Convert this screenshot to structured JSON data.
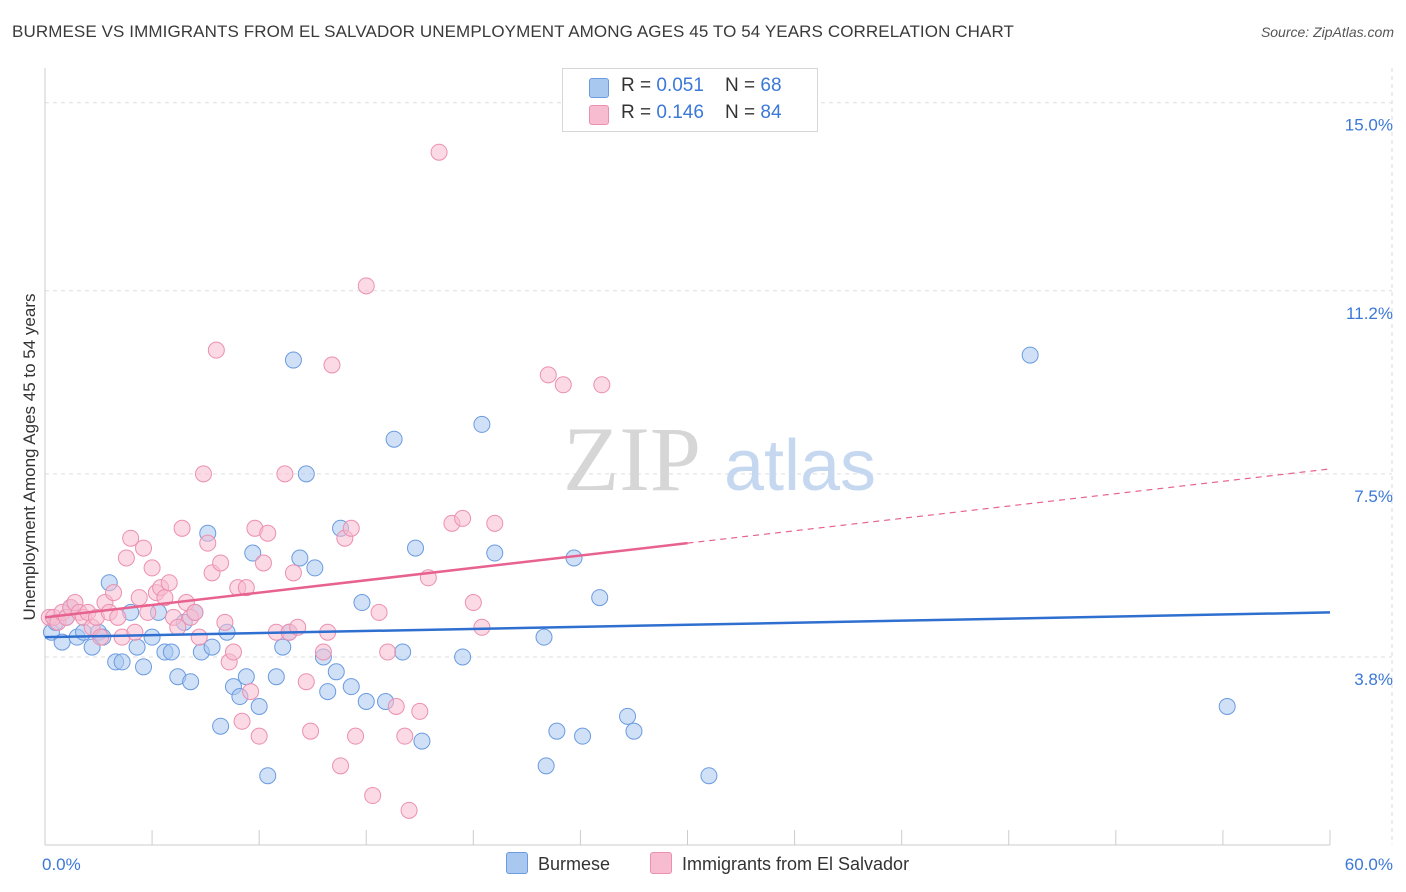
{
  "title": "BURMESE VS IMMIGRANTS FROM EL SALVADOR UNEMPLOYMENT AMONG AGES 45 TO 54 YEARS CORRELATION CHART",
  "source": "Source: ZipAtlas.com",
  "watermark": {
    "zip": "ZIP",
    "atlas": "atlas"
  },
  "legend": {
    "rows": [
      {
        "r_label": "R = ",
        "r_value": "0.051",
        "n_label": "N = ",
        "n_value": "68"
      },
      {
        "r_label": "R = ",
        "r_value": "0.146",
        "n_label": "N = ",
        "n_value": "84"
      }
    ]
  },
  "colors": {
    "burmese_fill": "#a9c8f0",
    "burmese_stroke": "#6a9be0",
    "burmese_line": "#2f6fcf",
    "salvador_fill": "#f7bcd0",
    "salvador_stroke": "#ec8fb0",
    "salvador_line": "#e8628f",
    "grid": "#dddddd",
    "axis_text": "#3b78d8"
  },
  "chart_data": {
    "type": "scatter",
    "title": "BURMESE VS IMMIGRANTS FROM EL SALVADOR UNEMPLOYMENT AMONG AGES 45 TO 54 YEARS CORRELATION CHART",
    "xlabel": "",
    "ylabel": "Unemployment Among Ages 45 to 54 years",
    "xlim": [
      0,
      60
    ],
    "ylim": [
      0,
      15.5
    ],
    "x_tick_labels": [
      "0.0%",
      "60.0%"
    ],
    "y_ticks": [
      3.8,
      7.5,
      11.2,
      15.0
    ],
    "y_tick_labels": [
      "3.8%",
      "7.5%",
      "11.2%",
      "15.0%"
    ],
    "legend_position": "top-center",
    "series": [
      {
        "name": "Burmese",
        "r": 0.051,
        "n": 68,
        "trend": {
          "x0": 0,
          "y0": 4.2,
          "x1": 60,
          "y1": 4.7
        },
        "points": [
          [
            0.3,
            4.3
          ],
          [
            0.5,
            4.5
          ],
          [
            0.8,
            4.1
          ],
          [
            1.0,
            4.6
          ],
          [
            1.2,
            4.8
          ],
          [
            1.5,
            4.2
          ],
          [
            1.8,
            4.3
          ],
          [
            2.2,
            4.0
          ],
          [
            2.5,
            4.3
          ],
          [
            2.7,
            4.2
          ],
          [
            3.0,
            5.3
          ],
          [
            3.3,
            3.7
          ],
          [
            3.6,
            3.7
          ],
          [
            4.0,
            4.7
          ],
          [
            4.3,
            4.0
          ],
          [
            4.6,
            3.6
          ],
          [
            5.0,
            4.2
          ],
          [
            5.3,
            4.7
          ],
          [
            5.6,
            3.9
          ],
          [
            5.9,
            3.9
          ],
          [
            6.2,
            3.4
          ],
          [
            6.5,
            4.5
          ],
          [
            6.8,
            3.3
          ],
          [
            7.0,
            4.7
          ],
          [
            7.3,
            3.9
          ],
          [
            7.6,
            6.3
          ],
          [
            7.8,
            4.0
          ],
          [
            8.2,
            2.4
          ],
          [
            8.5,
            4.3
          ],
          [
            8.8,
            3.2
          ],
          [
            9.1,
            3.0
          ],
          [
            9.4,
            3.4
          ],
          [
            9.7,
            5.9
          ],
          [
            10.0,
            2.8
          ],
          [
            10.4,
            1.4
          ],
          [
            10.8,
            3.4
          ],
          [
            11.1,
            4.0
          ],
          [
            11.4,
            4.3
          ],
          [
            11.6,
            9.8
          ],
          [
            11.9,
            5.8
          ],
          [
            12.2,
            7.5
          ],
          [
            12.6,
            5.6
          ],
          [
            13.0,
            3.8
          ],
          [
            13.2,
            3.1
          ],
          [
            13.6,
            3.5
          ],
          [
            13.8,
            6.4
          ],
          [
            14.3,
            3.2
          ],
          [
            14.8,
            4.9
          ],
          [
            15.0,
            2.9
          ],
          [
            15.9,
            2.9
          ],
          [
            16.3,
            8.2
          ],
          [
            16.7,
            3.9
          ],
          [
            17.3,
            6.0
          ],
          [
            17.6,
            2.1
          ],
          [
            19.5,
            3.8
          ],
          [
            20.4,
            8.5
          ],
          [
            21.0,
            5.9
          ],
          [
            23.3,
            4.2
          ],
          [
            23.4,
            1.6
          ],
          [
            23.9,
            2.3
          ],
          [
            24.7,
            5.8
          ],
          [
            25.1,
            2.2
          ],
          [
            25.9,
            5.0
          ],
          [
            27.2,
            2.6
          ],
          [
            27.5,
            2.3
          ],
          [
            31.0,
            1.4
          ],
          [
            46.0,
            9.9
          ],
          [
            55.2,
            2.8
          ]
        ]
      },
      {
        "name": "Immigrants from El Salvador",
        "r": 0.146,
        "n": 84,
        "trend": {
          "x0": 0,
          "y0": 4.6,
          "x1": 30,
          "y1": 6.1,
          "dashed_to_x": 60,
          "dashed_to_y": 7.6
        },
        "points": [
          [
            0.2,
            4.6
          ],
          [
            0.4,
            4.6
          ],
          [
            0.6,
            4.5
          ],
          [
            0.8,
            4.7
          ],
          [
            1.0,
            4.6
          ],
          [
            1.2,
            4.8
          ],
          [
            1.4,
            4.9
          ],
          [
            1.6,
            4.7
          ],
          [
            1.8,
            4.6
          ],
          [
            2.0,
            4.7
          ],
          [
            2.2,
            4.4
          ],
          [
            2.4,
            4.6
          ],
          [
            2.6,
            4.2
          ],
          [
            2.8,
            4.9
          ],
          [
            3.0,
            4.7
          ],
          [
            3.2,
            5.1
          ],
          [
            3.4,
            4.6
          ],
          [
            3.6,
            4.2
          ],
          [
            3.8,
            5.8
          ],
          [
            4.0,
            6.2
          ],
          [
            4.2,
            4.3
          ],
          [
            4.4,
            5.0
          ],
          [
            4.6,
            6.0
          ],
          [
            4.8,
            4.7
          ],
          [
            5.0,
            5.6
          ],
          [
            5.2,
            5.1
          ],
          [
            5.4,
            5.2
          ],
          [
            5.6,
            5.0
          ],
          [
            5.8,
            5.3
          ],
          [
            6.0,
            4.6
          ],
          [
            6.2,
            4.4
          ],
          [
            6.4,
            6.4
          ],
          [
            6.6,
            4.9
          ],
          [
            6.8,
            4.6
          ],
          [
            7.0,
            4.7
          ],
          [
            7.2,
            4.2
          ],
          [
            7.4,
            7.5
          ],
          [
            7.6,
            6.1
          ],
          [
            7.8,
            5.5
          ],
          [
            8.0,
            10.0
          ],
          [
            8.2,
            5.7
          ],
          [
            8.4,
            4.5
          ],
          [
            8.6,
            3.7
          ],
          [
            8.8,
            3.9
          ],
          [
            9.0,
            5.2
          ],
          [
            9.2,
            2.5
          ],
          [
            9.4,
            5.2
          ],
          [
            9.6,
            3.1
          ],
          [
            9.8,
            6.4
          ],
          [
            10.0,
            2.2
          ],
          [
            10.2,
            5.7
          ],
          [
            10.4,
            6.3
          ],
          [
            10.8,
            4.3
          ],
          [
            11.2,
            7.5
          ],
          [
            11.4,
            4.3
          ],
          [
            11.6,
            5.5
          ],
          [
            11.8,
            4.4
          ],
          [
            12.2,
            3.3
          ],
          [
            12.4,
            2.3
          ],
          [
            13.0,
            3.9
          ],
          [
            13.2,
            4.3
          ],
          [
            13.4,
            9.7
          ],
          [
            13.8,
            1.6
          ],
          [
            14.0,
            6.2
          ],
          [
            14.3,
            6.4
          ],
          [
            14.5,
            2.2
          ],
          [
            15.0,
            11.3
          ],
          [
            15.3,
            1.0
          ],
          [
            15.6,
            4.7
          ],
          [
            16.0,
            3.9
          ],
          [
            16.4,
            2.8
          ],
          [
            16.8,
            2.2
          ],
          [
            17.0,
            0.7
          ],
          [
            17.5,
            2.7
          ],
          [
            17.9,
            5.4
          ],
          [
            18.4,
            14.0
          ],
          [
            19.0,
            6.5
          ],
          [
            19.5,
            6.6
          ],
          [
            20.0,
            4.9
          ],
          [
            20.4,
            4.4
          ],
          [
            21.0,
            6.5
          ],
          [
            23.5,
            9.5
          ],
          [
            24.2,
            9.3
          ],
          [
            26.0,
            9.3
          ]
        ]
      }
    ]
  },
  "bottom_legend": {
    "items": [
      {
        "label": "Burmese"
      },
      {
        "label": "Immigrants from El Salvador"
      }
    ]
  }
}
